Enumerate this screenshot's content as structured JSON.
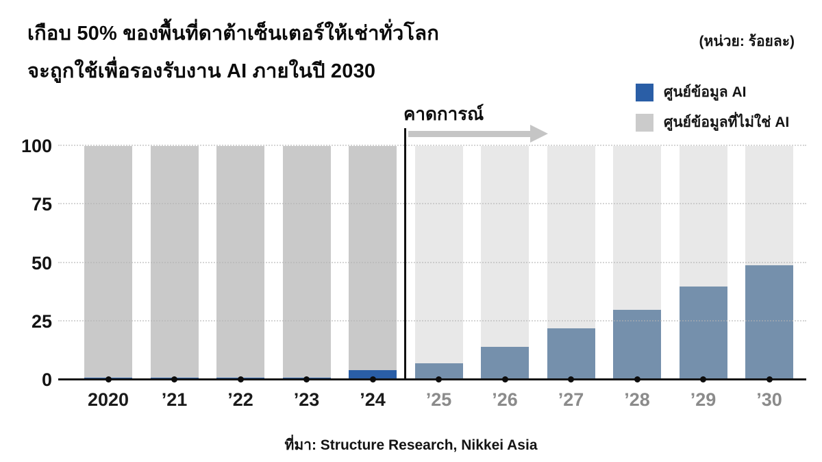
{
  "title": {
    "line1": "เกือบ 50% ของพื้นที่ดาต้าเซ็นเตอร์ให้เช่าทั่วโลก",
    "line2": "จะถูกใช้เพื่อรองรับงาน AI ภายในปี 2030"
  },
  "unit_note": "(หน่วย: ร้อยละ)",
  "legend": [
    {
      "label": "ศูนย์ข้อมูล AI",
      "color": "#2a5ea6"
    },
    {
      "label": "ศูนย์ข้อมูลที่ไม่ใช่ AI",
      "color": "#cbcbcb"
    }
  ],
  "annotations": {
    "forecast_label": "คาดการณ์"
  },
  "source": "ที่มา: Structure Research, Nikkei Asia",
  "chart_data": {
    "type": "bar",
    "stacked": true,
    "title": "เกือบ 50% ของพื้นที่ดาต้าเซ็นเตอร์ให้เช่าทั่วโลก จะถูกใช้เพื่อรองรับงาน AI ภายในปี 2030",
    "unit": "ร้อยละ (percent)",
    "categories": [
      "2020",
      "’21",
      "’22",
      "’23",
      "’24",
      "’25",
      "’26",
      "’27",
      "’28",
      "’29",
      "’30"
    ],
    "series": [
      {
        "name": "ศูนย์ข้อมูล AI",
        "values": [
          1,
          1,
          1,
          1,
          4,
          7,
          14,
          22,
          30,
          40,
          49
        ]
      },
      {
        "name": "ศูนย์ข้อมูลที่ไม่ใช่ AI",
        "values": [
          99,
          99,
          99,
          99,
          96,
          93,
          86,
          78,
          70,
          60,
          51
        ]
      }
    ],
    "forecast_start_index": 5,
    "ylim": [
      0,
      100
    ],
    "yticks": [
      0,
      25,
      50,
      75,
      100
    ],
    "grid": "dotted horizontal",
    "legend_position": "top-right",
    "colors": {
      "ai_historical": "#2a5ea6",
      "ai_forecast": "#7590ac",
      "non_ai_historical": "#c9c9c9",
      "non_ai_forecast": "#e8e8e8",
      "axis": "#161616",
      "x_label_historical": "#1b1b1b",
      "x_label_forecast": "#8b8b8b"
    }
  }
}
